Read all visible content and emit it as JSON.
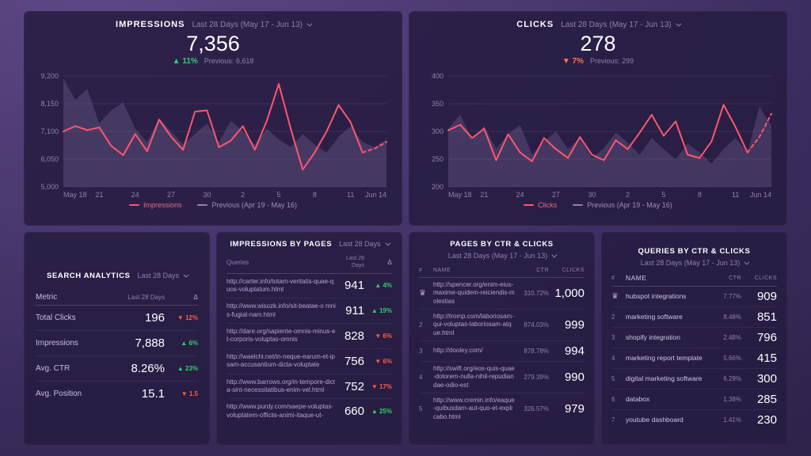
{
  "theme": {
    "accent_pink": "#ff566f",
    "up_green": "#2fd16b",
    "down_red": "#ff5c47",
    "down_orange": "#ff7a45",
    "muted": "#8d82a8",
    "panel_bg": "#261b40"
  },
  "panels": {
    "impressions": {
      "title": "IMPRESSIONS",
      "range_label": "Last 28 Days (May 17 - Jun 13)",
      "value": "7,356",
      "delta": "▲ 11%",
      "previous_label": "Previous: 6,618"
    },
    "clicks": {
      "title": "CLICKS",
      "range_label": "Last 28 Days (May 17 - Jun 13)",
      "value": "278",
      "delta": "▼ 7%",
      "previous_label": "Previous: 299"
    },
    "search_analytics": {
      "title": "SEARCH ANALYTICS",
      "range_label": "Last 28 Days",
      "columns": [
        "Metric",
        "Last 28 Days",
        "Δ"
      ],
      "rows": [
        {
          "metric": "Total Clicks",
          "value": "196",
          "delta": "12%",
          "dir": "down"
        },
        {
          "metric": "Impressions",
          "value": "7,888",
          "delta": "6%",
          "dir": "up"
        },
        {
          "metric": "Avg. CTR",
          "value": "8.26%",
          "delta": "23%",
          "dir": "up"
        },
        {
          "metric": "Avg. Position",
          "value": "15.1",
          "delta": "1.5",
          "dir": "down"
        }
      ]
    },
    "impressions_by_pages": {
      "title": "IMPRESSIONS BY PAGES",
      "range_label": "Last 28 Days",
      "columns": [
        "Queries",
        "Last 28 Days",
        "Δ"
      ],
      "rows": [
        {
          "url": "http://carter.info/totam-veritatis-quae-quos-voluptatum.html",
          "value": "941",
          "delta": "4%",
          "dir": "up"
        },
        {
          "url": "http://www.wisozk.info/sit-beatae-o mnis-fugiat-nam.html",
          "value": "911",
          "delta": "19%",
          "dir": "up"
        },
        {
          "url": "http://dare.org/sapiente-omnis-minus-et-corporis-voluptas-omnis",
          "value": "828",
          "delta": "6%",
          "dir": "down"
        },
        {
          "url": "http://waelchi.net/in-neque-earum-et-ipsam-accusantium-dicta-voluptate",
          "value": "756",
          "delta": "6%",
          "dir": "down"
        },
        {
          "url": "http://www.barrows.org/in-tempore-dicta-sint-necessitatibus-enim-vel.html",
          "value": "752",
          "delta": "17%",
          "dir": "down"
        },
        {
          "url": "http://www.purdy.com/saepe-voluptas-voluptatem-officiis-animi-itaque-ut-",
          "value": "660",
          "delta": "25%",
          "dir": "up"
        }
      ]
    },
    "pages_by_ctr": {
      "title": "PAGES BY CTR & CLICKS",
      "range_label": "Last 28 Days (May 17 - Jun 13)",
      "columns": [
        "#",
        "NAME",
        "CTR",
        "CLICKS"
      ],
      "rows": [
        {
          "rank": "1",
          "crown": true,
          "name": "http://spencer.org/enim-eius-maxime-quidem-reiciendis-molestias",
          "ctr": "310.72%",
          "clicks": "1,000"
        },
        {
          "rank": "2",
          "crown": false,
          "name": "http://tromp.com/laboriosam-qui-voluptas-laboriosam-atque.html",
          "ctr": "874.03%",
          "clicks": "999"
        },
        {
          "rank": "3",
          "crown": false,
          "name": "http://dooley.com/",
          "ctr": "878.78%",
          "clicks": "994"
        },
        {
          "rank": "4",
          "crown": false,
          "name": "http://swift.org/eos-quis-quae-dolorem-nulla-nihil-repudiandae-odio-est",
          "ctr": "279.39%",
          "clicks": "990"
        },
        {
          "rank": "5",
          "crown": false,
          "name": "http://www.cremin.info/eaque-quibusdam-aut-quo-et-explicabo.html",
          "ctr": "326.57%",
          "clicks": "979"
        }
      ]
    },
    "queries_by_ctr": {
      "title": "QUERIES BY CTR & CLICKS",
      "range_label": "Last 28 Days (May 17 - Jun 13)",
      "columns": [
        "#",
        "NAME",
        "CTR",
        "CLICKS"
      ],
      "rows": [
        {
          "rank": "1",
          "crown": true,
          "name": "hubspot integrations",
          "ctr": "7.77%",
          "clicks": "909"
        },
        {
          "rank": "2",
          "crown": false,
          "name": "marketing software",
          "ctr": "8.48%",
          "clicks": "851"
        },
        {
          "rank": "3",
          "crown": false,
          "name": "shopify integration",
          "ctr": "2.48%",
          "clicks": "796"
        },
        {
          "rank": "4",
          "crown": false,
          "name": "marketing report template",
          "ctr": "5.66%",
          "clicks": "415"
        },
        {
          "rank": "5",
          "crown": false,
          "name": "digital marketing software",
          "ctr": "6.29%",
          "clicks": "300"
        },
        {
          "rank": "6",
          "crown": false,
          "name": "databox",
          "ctr": "1.38%",
          "clicks": "285"
        },
        {
          "rank": "7",
          "crown": false,
          "name": "youtube dashboard",
          "ctr": "1.41%",
          "clicks": "230"
        }
      ]
    }
  },
  "chart_data": [
    {
      "type": "line",
      "title": "IMPRESSIONS",
      "ylim": [
        5000,
        9200
      ],
      "y_ticks": [
        5000,
        6050,
        7100,
        8150,
        9200
      ],
      "y_tick_labels": [
        "5,000",
        "6,050",
        "7,100",
        "8,150",
        "9,200"
      ],
      "x_tick_indices": [
        0,
        3,
        6,
        9,
        12,
        15,
        18,
        21,
        24,
        27
      ],
      "x_tick_labels": [
        "May 18",
        "21",
        "24",
        "27",
        "30",
        "2",
        "5",
        "8",
        "11",
        "Jun 14"
      ],
      "grid": true,
      "legend_position": "bottom",
      "dashed_from": 25,
      "series": [
        {
          "name": "Impressions",
          "color": "#ff566f",
          "area": false,
          "values": [
            7100,
            7300,
            7150,
            7250,
            6550,
            6200,
            7000,
            6350,
            7550,
            6900,
            6400,
            7850,
            7900,
            6500,
            6750,
            7300,
            6400,
            7500,
            8900,
            7200,
            5650,
            6300,
            7100,
            8100,
            7450,
            6300,
            6450,
            6700
          ]
        },
        {
          "name": "Previous (Apr 19 - May 16)",
          "color": "#8a7bab",
          "area": true,
          "values": [
            9100,
            8300,
            8700,
            7400,
            7900,
            8200,
            7200,
            6700,
            7600,
            7100,
            6600,
            7000,
            7400,
            6700,
            7500,
            7100,
            6600,
            7200,
            6800,
            6500,
            7000,
            6600,
            6300,
            6900,
            7300,
            6700,
            6500,
            6800
          ]
        }
      ]
    },
    {
      "type": "line",
      "title": "CLICKS",
      "ylim": [
        200,
        400
      ],
      "y_ticks": [
        200,
        250,
        300,
        350,
        400
      ],
      "y_tick_labels": [
        "200",
        "250",
        "300",
        "350",
        "400"
      ],
      "x_tick_indices": [
        0,
        3,
        6,
        9,
        12,
        15,
        18,
        21,
        24,
        27
      ],
      "x_tick_labels": [
        "May 18",
        "21",
        "24",
        "27",
        "30",
        "2",
        "5",
        "8",
        "11",
        "Jun 14"
      ],
      "grid": true,
      "legend_position": "bottom",
      "dashed_from": 25,
      "series": [
        {
          "name": "Clicks",
          "color": "#ff566f",
          "area": false,
          "values": [
            302,
            312,
            288,
            305,
            248,
            295,
            262,
            246,
            288,
            268,
            252,
            290,
            258,
            248,
            284,
            268,
            298,
            330,
            292,
            318,
            258,
            252,
            282,
            348,
            308,
            262,
            290,
            332
          ]
        },
        {
          "name": "Previous (Apr 19 - May 16)",
          "color": "#8a7bab",
          "area": true,
          "values": [
            305,
            330,
            285,
            310,
            268,
            295,
            312,
            258,
            282,
            300,
            268,
            288,
            252,
            270,
            298,
            280,
            258,
            288,
            268,
            250,
            278,
            262,
            242,
            268,
            288,
            262,
            345,
            310
          ]
        }
      ]
    }
  ]
}
